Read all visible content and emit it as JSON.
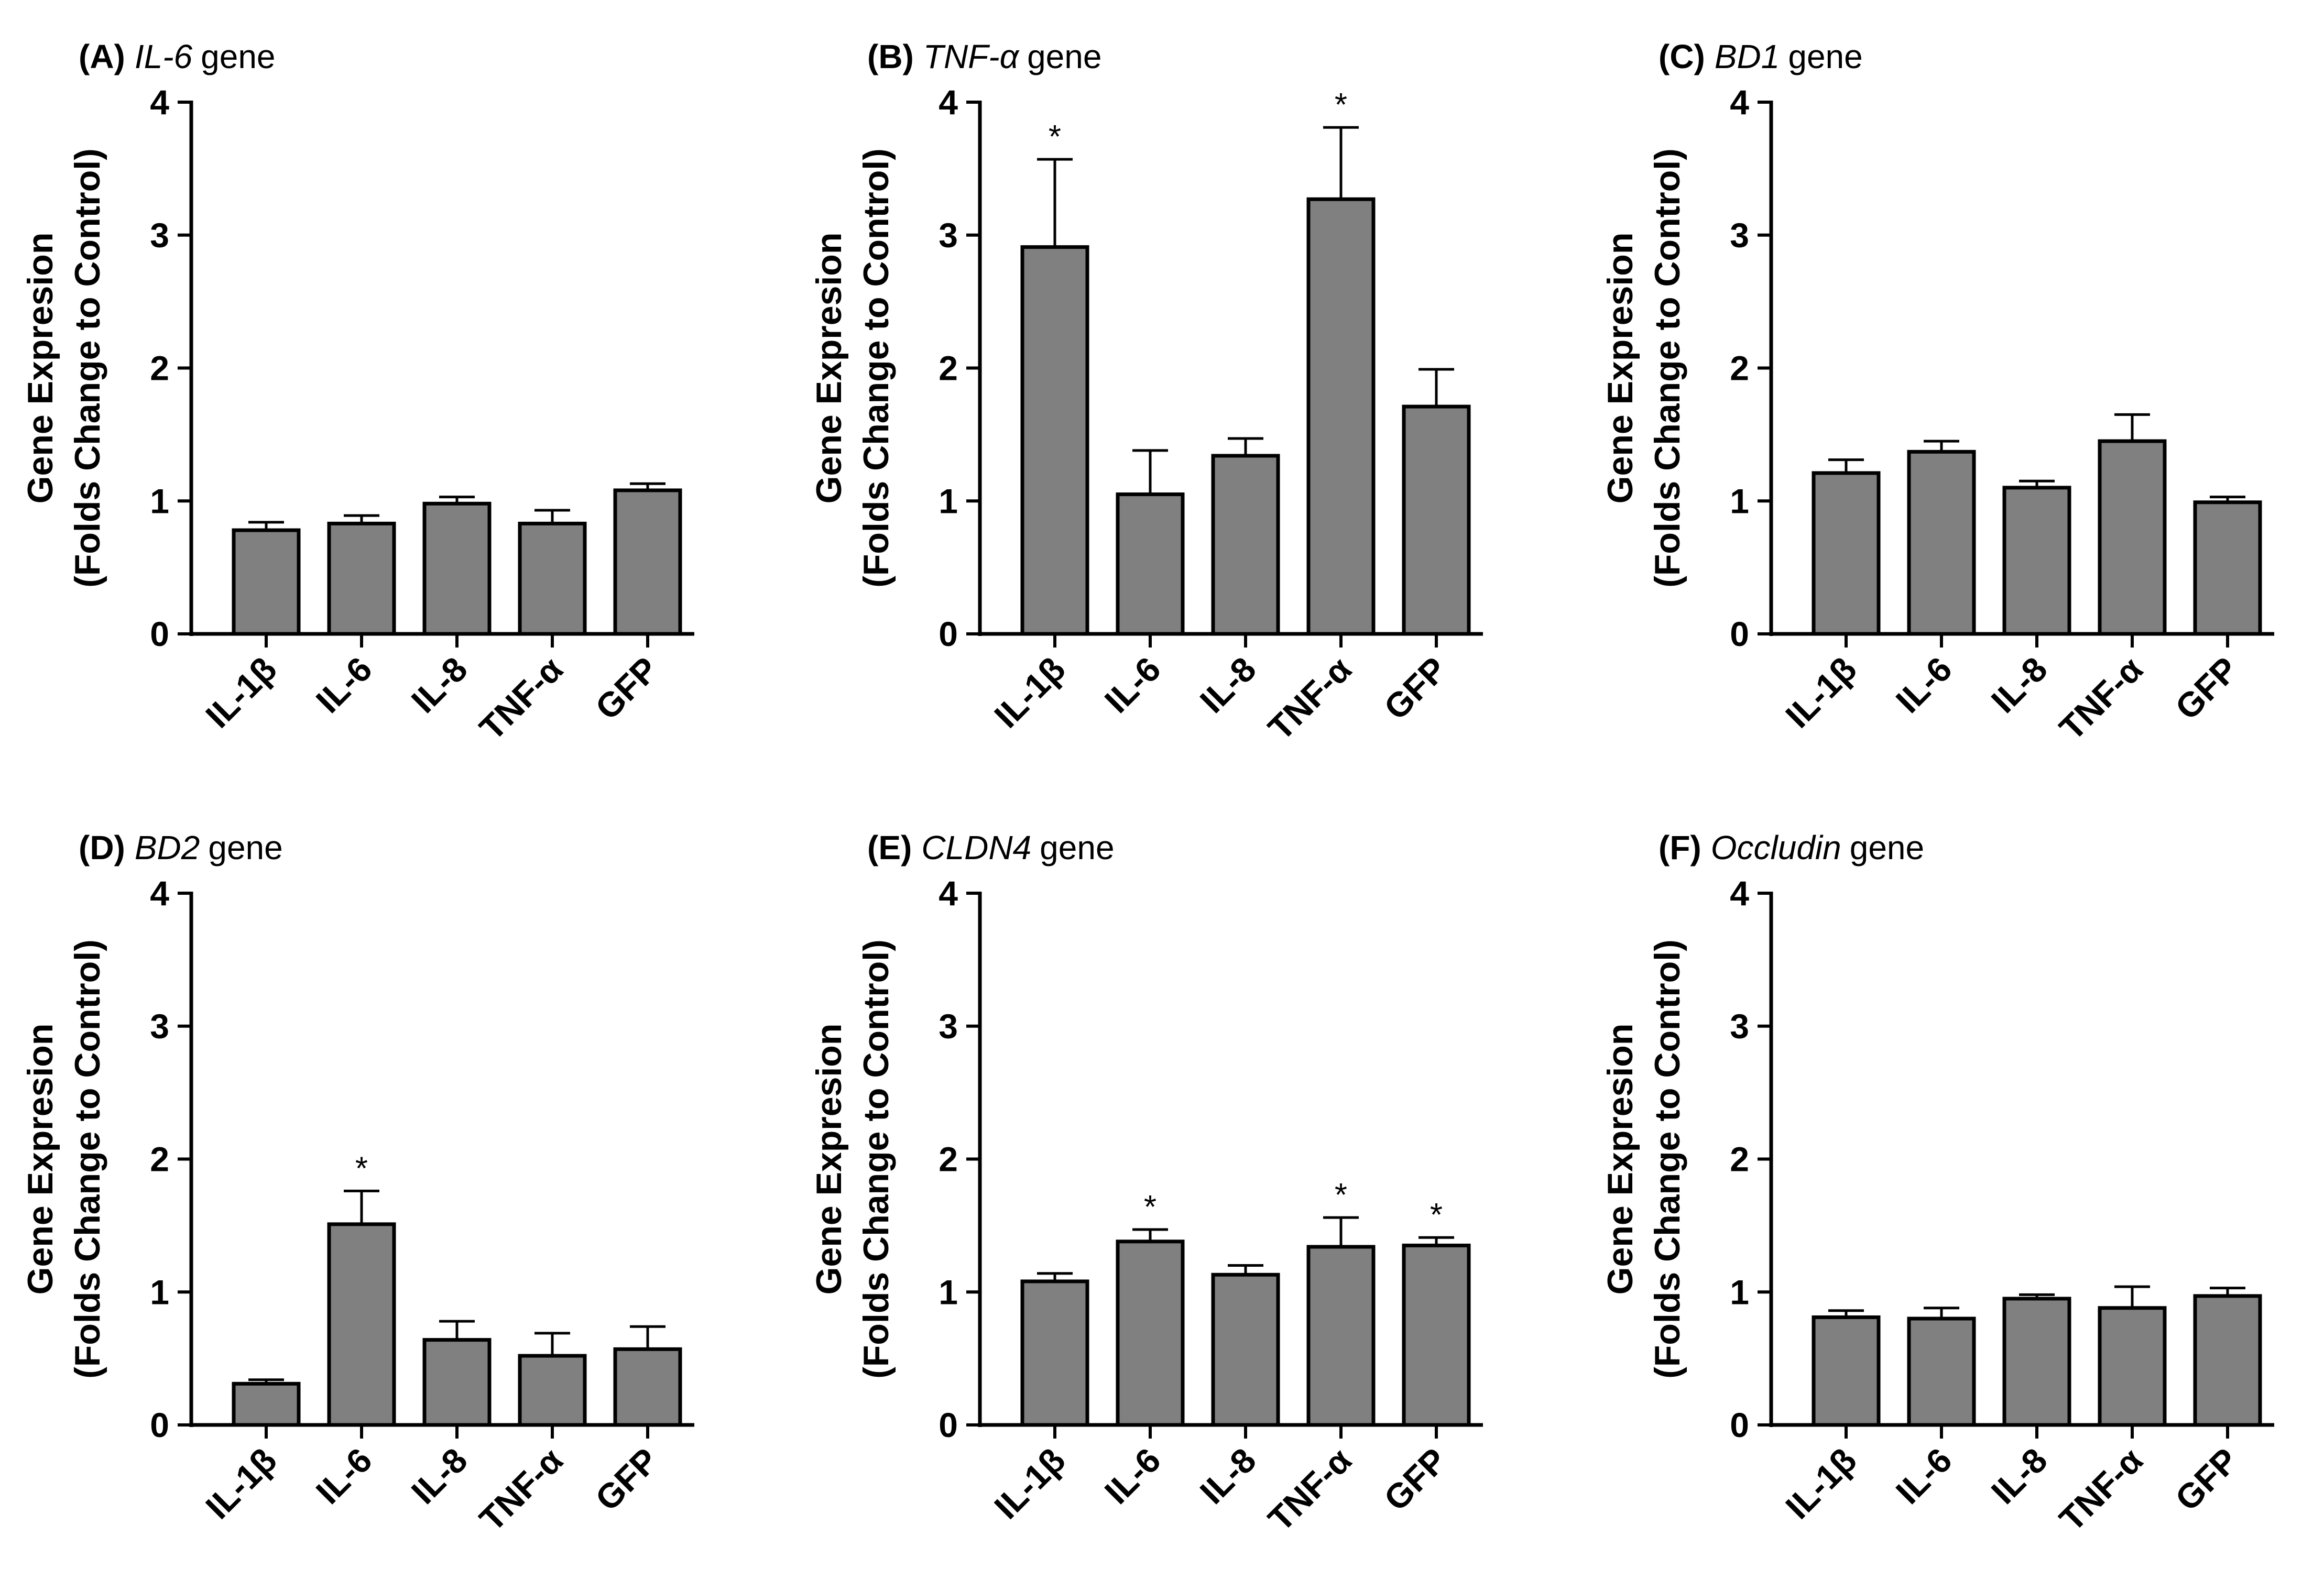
{
  "chart_data": [
    {
      "type": "bar",
      "panel_label": "(A)",
      "gene": "IL-6",
      "title_suffix": "gene",
      "ylabel_line1": "Gene Expresion",
      "ylabel_line2": "(Folds Change to Control)",
      "ylim": [
        0,
        4
      ],
      "yticks": [
        "0",
        "1",
        "2",
        "3",
        "4"
      ],
      "categories": [
        "IL-1β",
        "IL-6",
        "IL-8",
        "TNF-α",
        "GFP"
      ],
      "values": [
        0.78,
        0.83,
        0.98,
        0.83,
        1.08
      ],
      "errors": [
        0.06,
        0.06,
        0.05,
        0.1,
        0.05
      ],
      "significance": [
        "",
        "",
        "",
        "",
        ""
      ],
      "bar_color": "#808080"
    },
    {
      "type": "bar",
      "panel_label": "(B)",
      "gene": "TNF-α",
      "title_suffix": "gene",
      "ylabel_line1": "Gene Expresion",
      "ylabel_line2": "(Folds Change to Control)",
      "ylim": [
        0,
        4
      ],
      "yticks": [
        "0",
        "1",
        "2",
        "3",
        "4"
      ],
      "categories": [
        "IL-1β",
        "IL-6",
        "IL-8",
        "TNF-α",
        "GFP"
      ],
      "values": [
        2.91,
        1.05,
        1.34,
        3.27,
        1.71
      ],
      "errors": [
        0.66,
        0.33,
        0.13,
        0.54,
        0.28
      ],
      "significance": [
        "*",
        "",
        "",
        "*",
        ""
      ],
      "bar_color": "#808080"
    },
    {
      "type": "bar",
      "panel_label": "(C)",
      "gene": "BD1",
      "title_suffix": "gene",
      "ylabel_line1": "Gene Expresion",
      "ylabel_line2": "(Folds Change to Control)",
      "ylim": [
        0,
        4
      ],
      "yticks": [
        "0",
        "1",
        "2",
        "3",
        "4"
      ],
      "categories": [
        "IL-1β",
        "IL-6",
        "IL-8",
        "TNF-α",
        "GFP"
      ],
      "values": [
        1.21,
        1.37,
        1.1,
        1.45,
        0.99
      ],
      "errors": [
        0.1,
        0.08,
        0.05,
        0.2,
        0.04
      ],
      "significance": [
        "",
        "",
        "",
        "",
        ""
      ],
      "bar_color": "#808080"
    },
    {
      "type": "bar",
      "panel_label": "(D)",
      "gene": "BD2",
      "title_suffix": "gene",
      "ylabel_line1": "Gene Expresion",
      "ylabel_line2": "(Folds Change to Control)",
      "ylim": [
        0,
        4
      ],
      "yticks": [
        "0",
        "1",
        "2",
        "3",
        "4"
      ],
      "categories": [
        "IL-1β",
        "IL-6",
        "IL-8",
        "TNF-α",
        "GFP"
      ],
      "values": [
        0.31,
        1.51,
        0.64,
        0.52,
        0.57
      ],
      "errors": [
        0.03,
        0.25,
        0.14,
        0.17,
        0.17
      ],
      "significance": [
        "",
        "*",
        "",
        "",
        ""
      ],
      "bar_color": "#808080"
    },
    {
      "type": "bar",
      "panel_label": "(E)",
      "gene": "CLDN4",
      "title_suffix": "gene",
      "ylabel_line1": "Gene Expresion",
      "ylabel_line2": "(Folds Change to Control)",
      "ylim": [
        0,
        4
      ],
      "yticks": [
        "0",
        "1",
        "2",
        "3",
        "4"
      ],
      "categories": [
        "IL-1β",
        "IL-6",
        "IL-8",
        "TNF-α",
        "GFP"
      ],
      "values": [
        1.08,
        1.38,
        1.13,
        1.34,
        1.35
      ],
      "errors": [
        0.06,
        0.09,
        0.07,
        0.22,
        0.06
      ],
      "significance": [
        "",
        "*",
        "",
        "*",
        "*"
      ],
      "bar_color": "#808080"
    },
    {
      "type": "bar",
      "panel_label": "(F)",
      "gene": "Occludin",
      "title_suffix": "gene",
      "ylabel_line1": "Gene Expresion",
      "ylabel_line2": "(Folds Change to Control)",
      "ylim": [
        0,
        4
      ],
      "yticks": [
        "0",
        "1",
        "2",
        "3",
        "4"
      ],
      "categories": [
        "IL-1β",
        "IL-6",
        "IL-8",
        "TNF-α",
        "GFP"
      ],
      "values": [
        0.81,
        0.8,
        0.95,
        0.88,
        0.97
      ],
      "errors": [
        0.05,
        0.08,
        0.03,
        0.16,
        0.06
      ],
      "significance": [
        "",
        "",
        "",
        "",
        ""
      ],
      "bar_color": "#808080"
    }
  ]
}
